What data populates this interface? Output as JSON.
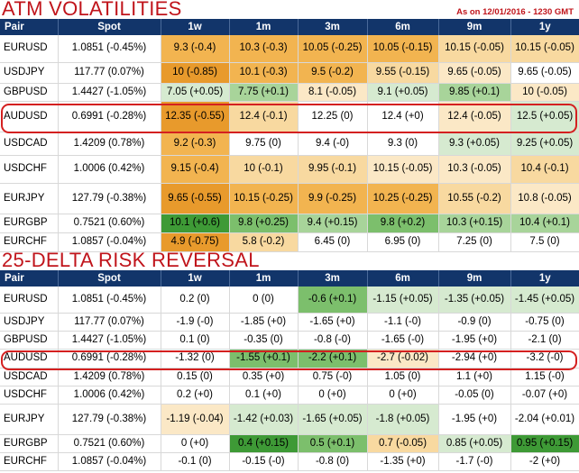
{
  "colors": {
    "title": "#c0141b",
    "header_bg": "#12356a",
    "highlight_ring": "#d42020",
    "heat": {
      "orange_dark": "#e89a2c",
      "orange": "#f2b450",
      "orange_light": "#f8d9a0",
      "peach": "#fbe8c6",
      "white": "#ffffff",
      "green_pale": "#d6ead0",
      "green_light": "#a8d49a",
      "green": "#7cbf6c",
      "green_dark": "#3e9a36"
    }
  },
  "columns": [
    "Pair",
    "Spot",
    "1w",
    "1m",
    "3m",
    "6m",
    "9m",
    "1y"
  ],
  "atm": {
    "title": "ATM VOLATILITIES",
    "as_of": "As on 12/01/2016 - 1230 GMT",
    "highlighted_pair": "AUDUSD",
    "rows": [
      {
        "pair": "EURUSD",
        "spot": "1.0851 (-0.45%)",
        "cells": [
          "9.3 (-0.4)",
          "10.3 (-0.3)",
          "10.05 (-0.25)",
          "10.05 (-0.15)",
          "10.15 (-0.05)",
          "10.15 (-0.05)"
        ],
        "bg": [
          "orange",
          "orange",
          "orange",
          "orange",
          "orange_light",
          "orange_light"
        ]
      },
      {
        "pair": "USDJPY",
        "spot": "117.77 (0.07%)",
        "cells": [
          "10 (-0.85)",
          "10.1 (-0.3)",
          "9.5 (-0.2)",
          "9.55 (-0.15)",
          "9.65 (-0.05)",
          "9.65 (-0.05)"
        ],
        "bg": [
          "orange_dark",
          "orange",
          "orange",
          "orange_light",
          "peach",
          "white"
        ]
      },
      {
        "pair": "GBPUSD",
        "spot": "1.4427 (-1.05%)",
        "cells": [
          "7.05 (+0.05)",
          "7.75 (+0.1)",
          "8.1 (-0.05)",
          "9.1 (+0.05)",
          "9.85 (+0.1)",
          "10 (-0.05)"
        ],
        "bg": [
          "green_pale",
          "green_light",
          "peach",
          "green_pale",
          "green_light",
          "peach"
        ]
      },
      {
        "pair": "AUDUSD",
        "spot": "0.6991 (-0.28%)",
        "cells": [
          "12.35 (-0.55)",
          "12.4 (-0.1)",
          "12.25 (0)",
          "12.4 (+0)",
          "12.4 (-0.05)",
          "12.5 (+0.05)"
        ],
        "bg": [
          "orange_dark",
          "orange_light",
          "white",
          "white",
          "peach",
          "green_pale"
        ]
      },
      {
        "pair": "USDCAD",
        "spot": "1.4209 (0.78%)",
        "cells": [
          "9.2 (-0.3)",
          "9.75 (0)",
          "9.4 (-0)",
          "9.3 (0)",
          "9.3 (+0.05)",
          "9.25 (+0.05)"
        ],
        "bg": [
          "orange",
          "white",
          "white",
          "white",
          "green_pale",
          "green_pale"
        ]
      },
      {
        "pair": "USDCHF",
        "spot": "1.0006 (0.42%)",
        "cells": [
          "9.15 (-0.4)",
          "10 (-0.1)",
          "9.95 (-0.1)",
          "10.15 (-0.05)",
          "10.3 (-0.05)",
          "10.4 (-0.1)"
        ],
        "bg": [
          "orange",
          "orange_light",
          "orange_light",
          "peach",
          "peach",
          "orange_light"
        ]
      },
      {
        "pair": "EURJPY",
        "spot": "127.79 (-0.38%)",
        "cells": [
          "9.65 (-0.55)",
          "10.15 (-0.25)",
          "9.9 (-0.25)",
          "10.25 (-0.25)",
          "10.55 (-0.2)",
          "10.8 (-0.05)"
        ],
        "bg": [
          "orange_dark",
          "orange",
          "orange",
          "orange",
          "orange_light",
          "peach"
        ]
      },
      {
        "pair": "EURGBP",
        "spot": "0.7521 (0.60%)",
        "cells": [
          "10.1 (+0.6)",
          "9.8 (+0.25)",
          "9.4 (+0.15)",
          "9.8 (+0.2)",
          "10.3 (+0.15)",
          "10.4 (+0.1)"
        ],
        "bg": [
          "green_dark",
          "green",
          "green_light",
          "green",
          "green_light",
          "green_light"
        ]
      },
      {
        "pair": "EURCHF",
        "spot": "1.0857 (-0.04%)",
        "cells": [
          "4.9 (-0.75)",
          "5.8 (-0.2)",
          "6.45 (0)",
          "6.95 (0)",
          "7.25 (0)",
          "7.5 (0)"
        ],
        "bg": [
          "orange_dark",
          "orange_light",
          "white",
          "white",
          "white",
          "white"
        ]
      }
    ]
  },
  "rr": {
    "title": "25-DELTA RISK REVERSAL",
    "highlighted_pair": "AUDUSD",
    "rows": [
      {
        "pair": "EURUSD",
        "spot": "1.0851 (-0.45%)",
        "cells": [
          "0.2 (0)",
          "0 (0)",
          "-0.6 (+0.1)",
          "-1.15 (+0.05)",
          "-1.35 (+0.05)",
          "-1.45 (+0.05)"
        ],
        "bg": [
          "white",
          "white",
          "green",
          "green_pale",
          "green_pale",
          "green_pale"
        ]
      },
      {
        "pair": "USDJPY",
        "spot": "117.77 (0.07%)",
        "cells": [
          "-1.9 (-0)",
          "-1.85 (+0)",
          "-1.65 (+0)",
          "-1.1 (-0)",
          "-0.9 (0)",
          "-0.75 (0)"
        ],
        "bg": [
          "white",
          "white",
          "white",
          "white",
          "white",
          "white"
        ]
      },
      {
        "pair": "GBPUSD",
        "spot": "1.4427 (-1.05%)",
        "cells": [
          "0.1 (0)",
          "-0.35 (0)",
          "-0.8 (-0)",
          "-1.65 (-0)",
          "-1.95 (+0)",
          "-2.1 (0)"
        ],
        "bg": [
          "white",
          "white",
          "white",
          "white",
          "white",
          "white"
        ]
      },
      {
        "pair": "AUDUSD",
        "spot": "0.6991 (-0.28%)",
        "cells": [
          "-1.32 (0)",
          "-1.55 (+0.1)",
          "-2.2 (+0.1)",
          "-2.7 (-0.02)",
          "-2.94 (+0)",
          "-3.2 (-0)"
        ],
        "bg": [
          "white",
          "green",
          "green",
          "peach",
          "white",
          "white"
        ]
      },
      {
        "pair": "USDCAD",
        "spot": "1.4209 (0.78%)",
        "cells": [
          "0.15 (0)",
          "0.35 (+0)",
          "0.75 (-0)",
          "1.05 (0)",
          "1.1 (+0)",
          "1.15 (-0)"
        ],
        "bg": [
          "white",
          "white",
          "white",
          "white",
          "white",
          "white"
        ]
      },
      {
        "pair": "USDCHF",
        "spot": "1.0006 (0.42%)",
        "cells": [
          "0.2 (+0)",
          "0.1 (+0)",
          "0 (+0)",
          "0 (+0)",
          "-0.05 (0)",
          "-0.07 (+0)"
        ],
        "bg": [
          "white",
          "white",
          "white",
          "white",
          "white",
          "white"
        ]
      },
      {
        "pair": "EURJPY",
        "spot": "127.79 (-0.38%)",
        "cells": [
          "-1.19 (-0.04)",
          "-1.42 (+0.03)",
          "-1.65 (+0.05)",
          "-1.8 (+0.05)",
          "-1.95 (+0)",
          "-2.04 (+0.01)"
        ],
        "bg": [
          "peach",
          "green_pale",
          "green_pale",
          "green_pale",
          "white",
          "white"
        ]
      },
      {
        "pair": "EURGBP",
        "spot": "0.7521 (0.60%)",
        "cells": [
          "0 (+0)",
          "0.4 (+0.15)",
          "0.5 (+0.1)",
          "0.7 (-0.05)",
          "0.85 (+0.05)",
          "0.95 (+0.15)"
        ],
        "bg": [
          "white",
          "green_dark",
          "green",
          "orange_light",
          "green_pale",
          "green_dark"
        ]
      },
      {
        "pair": "EURCHF",
        "spot": "1.0857 (-0.04%)",
        "cells": [
          "-0.1 (0)",
          "-0.15 (-0)",
          "-0.8 (0)",
          "-1.35 (+0)",
          "-1.7 (-0)",
          "-2 (+0)"
        ],
        "bg": [
          "white",
          "white",
          "white",
          "white",
          "white",
          "white"
        ]
      }
    ]
  }
}
